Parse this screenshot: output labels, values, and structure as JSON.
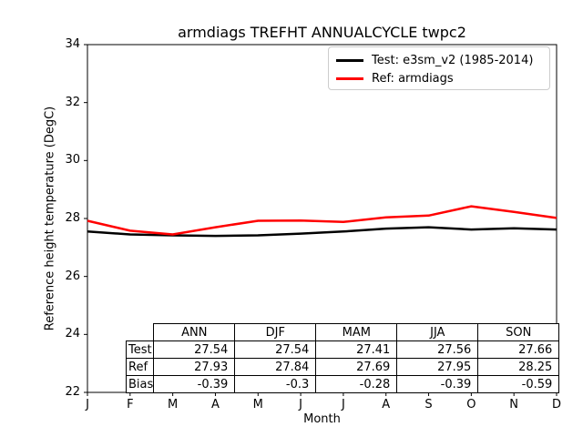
{
  "title": "armdiags TREFHT ANNUALCYCLE twpc2",
  "axes": {
    "ylabel": "Reference height temperature (DegC)",
    "xlabel": "Month"
  },
  "legend": {
    "entries": [
      {
        "label": "Test: e3sm_v2 (1985-2014)",
        "color": "#000000"
      },
      {
        "label": "Ref: armdiags",
        "color": "#ff0000"
      }
    ]
  },
  "chart_data": {
    "type": "line",
    "title": "armdiags TREFHT ANNUALCYCLE twpc2",
    "xlabel": "Month",
    "ylabel": "Reference height temperature (DegC)",
    "x": [
      "J",
      "F",
      "M",
      "A",
      "M",
      "J",
      "J",
      "A",
      "S",
      "O",
      "N",
      "D"
    ],
    "ylim": [
      22,
      34
    ],
    "yticks": [
      22,
      24,
      26,
      28,
      30,
      32,
      34
    ],
    "grid": false,
    "legend_position": "upper right",
    "series": [
      {
        "name": "Test: e3sm_v2 (1985-2014)",
        "color": "#000000",
        "values": [
          27.55,
          27.45,
          27.42,
          27.4,
          27.42,
          27.48,
          27.55,
          27.65,
          27.7,
          27.62,
          27.66,
          27.62
        ]
      },
      {
        "name": "Ref: armdiags",
        "color": "#ff0000",
        "values": [
          27.92,
          27.58,
          27.45,
          27.7,
          27.92,
          27.93,
          27.88,
          28.04,
          28.1,
          28.42,
          28.23,
          28.02
        ]
      }
    ]
  },
  "table": {
    "columns": [
      "ANN",
      "DJF",
      "MAM",
      "JJA",
      "SON"
    ],
    "rows": [
      {
        "label": "Test",
        "values": [
          "27.54",
          "27.54",
          "27.41",
          "27.56",
          "27.66"
        ]
      },
      {
        "label": "Ref",
        "values": [
          "27.93",
          "27.84",
          "27.69",
          "27.95",
          "28.25"
        ]
      },
      {
        "label": "Bias",
        "values": [
          "-0.39",
          "-0.3",
          "-0.28",
          "-0.39",
          "-0.59"
        ]
      }
    ]
  }
}
